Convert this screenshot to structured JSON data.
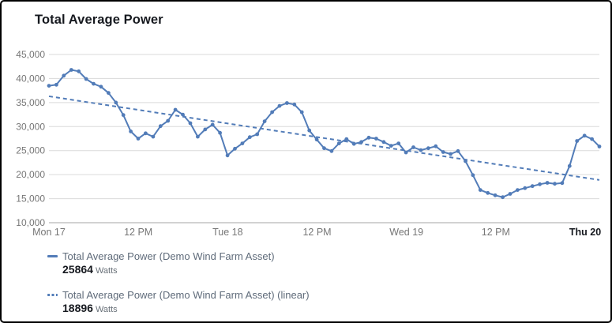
{
  "widget": {
    "title": "Total Average Power"
  },
  "colors": {
    "series_line": "#527cb8",
    "trend_line": "#527cb8",
    "title_text": "#16191f",
    "axis_text": "#767676",
    "axis_text_bold": "#16191f",
    "grid_line": "#dadada",
    "axis_line": "#a6a6a6",
    "legend_label_text": "#5f6b7a",
    "legend_value_text": "#16191f",
    "widget_border": "#000000"
  },
  "chart_data": {
    "type": "line",
    "title": "Total Average Power",
    "unit": "Watts",
    "grid": true,
    "legend_position": "bottom",
    "x_axis": {
      "start": "Mon 17 12:00 AM",
      "interval": "1 hour",
      "tick_labels": [
        "Mon 17",
        "12 PM",
        "Tue 18",
        "12 PM",
        "Wed 19",
        "12 PM",
        "Thu 20"
      ],
      "tick_interval_hours": 12
    },
    "y_axis": {
      "min": 10000,
      "max": 45000,
      "tick_values": [
        45000,
        40000,
        35000,
        30000,
        25000,
        20000,
        15000,
        10000
      ],
      "tick_labels": [
        "45,000",
        "40,000",
        "35,000",
        "30,000",
        "25,000",
        "20,000",
        "15,000",
        "10,000"
      ]
    },
    "series": [
      {
        "name": "Total Average Power (Demo Wind Farm Asset)",
        "style": "solid",
        "markers": true,
        "current_value": 25864,
        "values": [
          38500,
          38700,
          40600,
          41800,
          41500,
          39900,
          38900,
          38300,
          37000,
          35000,
          32400,
          29000,
          27500,
          28600,
          27900,
          30100,
          31200,
          33500,
          32500,
          30700,
          27900,
          29400,
          30400,
          28700,
          24000,
          25400,
          26500,
          27800,
          28400,
          31100,
          33000,
          34300,
          34900,
          34600,
          33000,
          29200,
          27300,
          25500,
          24900,
          26500,
          27400,
          26400,
          26800,
          27700,
          27500,
          26800,
          26000,
          26500,
          24600,
          25700,
          25100,
          25500,
          25900,
          24700,
          24300,
          24900,
          22800,
          19900,
          16800,
          16200,
          15700,
          15300,
          16000,
          16800,
          17200,
          17600,
          18000,
          18300,
          18100,
          18250,
          21800,
          27000,
          28100,
          27400,
          25864
        ]
      },
      {
        "name": "Total Average Power (Demo Wind Farm Asset) (linear)",
        "style": "dashed",
        "markers": false,
        "current_value": 18896,
        "start_value": 36300,
        "end_value": 18896
      }
    ]
  },
  "legend": {
    "items": [
      {
        "label": "Total Average Power (Demo Wind Farm Asset)",
        "value": "25864",
        "unit": "Watts",
        "swatch": "solid-line-swatch"
      },
      {
        "label": "Total Average Power (Demo Wind Farm Asset) (linear)",
        "value": "18896",
        "unit": "Watts",
        "swatch": "dashed-line-swatch"
      }
    ]
  }
}
